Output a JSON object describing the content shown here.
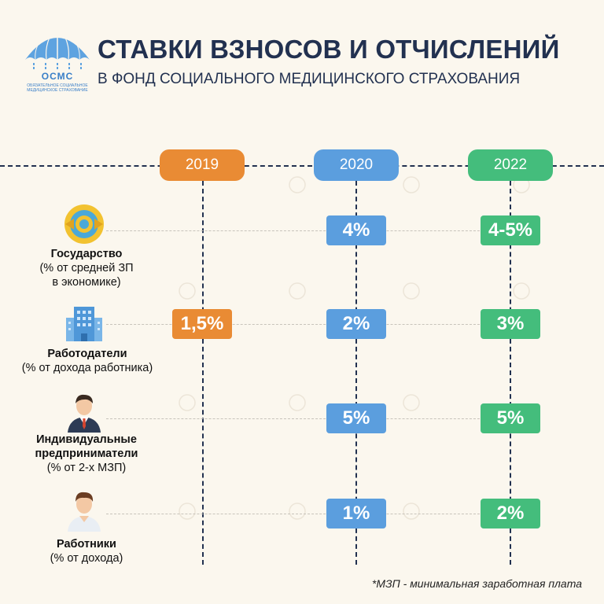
{
  "logo": {
    "text": "ОСМС",
    "sub_lines": [
      "ОБЯЗАТЕЛЬНОЕ СОЦИАЛЬНОЕ",
      "МЕДИЦИНСКОЕ СТРАХОВАНИЕ"
    ],
    "icon": "umbrella-icon"
  },
  "header": {
    "title": "СТАВКИ ВЗНОСОВ И ОТЧИСЛЕНИЙ",
    "subtitle": "В ФОНД СОЦИАЛЬНОГО МЕДИЦИНСКОГО СТРАХОВАНИЯ"
  },
  "years": [
    "2019",
    "2020",
    "2022"
  ],
  "rows": [
    {
      "title": "Государство",
      "sub": [
        "(% от средней ЗП",
        "в экономике)"
      ],
      "icon": "state-emblem-icon",
      "rates": [
        "",
        "4%",
        "4-5%"
      ]
    },
    {
      "title": "Работодатели",
      "sub": [
        "(% от дохода работника)"
      ],
      "icon": "office-building-icon",
      "rates": [
        "1,5%",
        "2%",
        "3%"
      ]
    },
    {
      "title": "Индивидуальные",
      "title2": "предприниматели",
      "sub": [
        "(% от 2-х МЗП)"
      ],
      "icon": "businessman-icon",
      "rates": [
        "",
        "5%",
        "5%"
      ]
    },
    {
      "title": "Работники",
      "sub": [
        "(% от дохода)"
      ],
      "icon": "worker-icon",
      "rates": [
        "",
        "1%",
        "2%"
      ]
    }
  ],
  "footnote": "*МЗП - минимальная заработная плата",
  "colors": {
    "year2019": "#e98b34",
    "year2020": "#5b9ede",
    "year2022": "#44bd7c",
    "navy": "#223150",
    "background": "#fbf7ee"
  }
}
